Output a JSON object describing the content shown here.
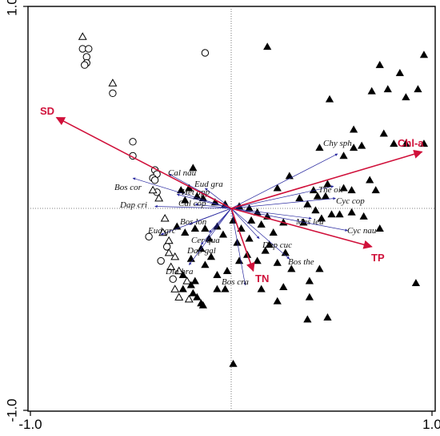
{
  "chart_data": {
    "type": "scatter",
    "title": "",
    "xlabel": "",
    "ylabel": "",
    "xlim": [
      -1.0,
      1.0
    ],
    "ylim": [
      -1.0,
      1.0
    ],
    "x_ticks": [
      -1.0,
      1.0
    ],
    "y_ticks": [
      -1.0,
      1.0
    ],
    "x_tick_labels": [
      "-1.0",
      "1.0"
    ],
    "y_tick_labels": [
      "-1.0",
      "1.0"
    ],
    "grid": false,
    "origin_crosshair": "dotted",
    "colors": {
      "env_arrow": "#d0103a",
      "species_arrow": "#2a2aa0",
      "points": "#000000"
    },
    "env_vectors": [
      {
        "name": "SD",
        "x": -0.87,
        "y": 0.45
      },
      {
        "name": "Chl-a",
        "x": 0.95,
        "y": 0.28
      },
      {
        "name": "TP",
        "x": 0.7,
        "y": -0.19
      },
      {
        "name": "TN",
        "x": 0.11,
        "y": -0.31
      }
    ],
    "species_vectors": [
      {
        "name": "Chy sph",
        "x": 0.53,
        "y": 0.27
      },
      {
        "name": "The oit",
        "x": 0.51,
        "y": 0.11
      },
      {
        "name": "Cyc cop",
        "x": 0.52,
        "y": 0.05
      },
      {
        "name": "Mes leu",
        "x": 0.4,
        "y": -0.05
      },
      {
        "name": "Cyc nau",
        "x": 0.58,
        "y": -0.11
      },
      {
        "name": "Bos the",
        "x": 0.29,
        "y": -0.25
      },
      {
        "name": "Dap cuc",
        "x": 0.14,
        "y": -0.15
      },
      {
        "name": "Bos cra",
        "x": 0.07,
        "y": -0.38
      },
      {
        "name": "Cal nau",
        "x": -0.31,
        "y": 0.17
      },
      {
        "name": "Eud gra",
        "x": -0.13,
        "y": 0.1
      },
      {
        "name": "Bos cor",
        "x": -0.49,
        "y": 0.15
      },
      {
        "name": "Het app",
        "x": -0.27,
        "y": 0.07
      },
      {
        "name": "Dap cri",
        "x": -0.38,
        "y": 0.01
      },
      {
        "name": "Cal cop",
        "x": -0.18,
        "y": 0.02
      },
      {
        "name": "Bos lon",
        "x": -0.21,
        "y": -0.08
      },
      {
        "name": "Eud grc",
        "x": -0.35,
        "y": -0.13
      },
      {
        "name": "Cer qua",
        "x": -0.11,
        "y": -0.12
      },
      {
        "name": "Dap gal",
        "x": -0.15,
        "y": -0.18
      },
      {
        "name": "Dia bra",
        "x": -0.21,
        "y": -0.28
      }
    ],
    "series": [
      {
        "marker": "open-circle",
        "points": [
          [
            -0.74,
            0.79
          ],
          [
            -0.71,
            0.79
          ],
          [
            -0.72,
            0.75
          ],
          [
            -0.72,
            0.72
          ],
          [
            -0.73,
            0.71
          ],
          [
            -0.59,
            0.57
          ],
          [
            -0.13,
            0.77
          ],
          [
            -0.49,
            0.33
          ],
          [
            -0.49,
            0.26
          ],
          [
            -0.38,
            0.19
          ],
          [
            -0.37,
            0.17
          ],
          [
            -0.39,
            0.15
          ],
          [
            -0.38,
            0.14
          ],
          [
            -0.37,
            0.08
          ],
          [
            -0.41,
            -0.14
          ],
          [
            -0.32,
            -0.19
          ],
          [
            -0.35,
            -0.26
          ],
          [
            -0.29,
            -0.35
          ]
        ]
      },
      {
        "marker": "open-triangle",
        "points": [
          [
            -0.74,
            0.85
          ],
          [
            -0.59,
            0.62
          ],
          [
            -0.39,
            0.09
          ],
          [
            -0.36,
            0.05
          ],
          [
            -0.33,
            -0.05
          ],
          [
            -0.34,
            -0.12
          ],
          [
            -0.31,
            -0.16
          ],
          [
            -0.31,
            -0.22
          ],
          [
            -0.28,
            -0.24
          ],
          [
            -0.3,
            -0.29
          ],
          [
            -0.26,
            -0.31
          ],
          [
            -0.22,
            -0.36
          ],
          [
            -0.28,
            -0.4
          ],
          [
            -0.21,
            -0.45
          ],
          [
            -0.26,
            -0.44
          ]
        ]
      },
      {
        "marker": "filled-triangle",
        "points": [
          [
            0.18,
            0.8
          ],
          [
            0.96,
            0.76
          ],
          [
            0.84,
            0.67
          ],
          [
            0.74,
            0.71
          ],
          [
            0.93,
            0.59
          ],
          [
            0.49,
            0.54
          ],
          [
            0.87,
            0.55
          ],
          [
            0.78,
            0.59
          ],
          [
            0.7,
            0.58
          ],
          [
            0.61,
            0.39
          ],
          [
            0.76,
            0.37
          ],
          [
            0.61,
            0.3
          ],
          [
            0.65,
            0.31
          ],
          [
            0.44,
            0.3
          ],
          [
            0.56,
            0.26
          ],
          [
            0.87,
            0.32
          ],
          [
            0.81,
            0.32
          ],
          [
            0.96,
            0.32
          ],
          [
            0.48,
            0.12
          ],
          [
            0.56,
            0.1
          ],
          [
            0.72,
            0.09
          ],
          [
            0.6,
            0.09
          ],
          [
            0.69,
            0.14
          ],
          [
            0.29,
            0.16
          ],
          [
            0.23,
            0.1
          ],
          [
            0.43,
            0.06
          ],
          [
            0.47,
            0.06
          ],
          [
            0.41,
            0.09
          ],
          [
            0.34,
            0.05
          ],
          [
            0.38,
            0.02
          ],
          [
            0.42,
            -0.01
          ],
          [
            0.6,
            -0.02
          ],
          [
            0.45,
            -0.05
          ],
          [
            0.54,
            -0.03
          ],
          [
            0.5,
            -0.03
          ],
          [
            0.66,
            -0.04
          ],
          [
            0.74,
            -0.1
          ],
          [
            -0.19,
            0.2
          ],
          [
            -0.21,
            0.1
          ],
          [
            -0.25,
            0.09
          ],
          [
            -0.23,
            0.04
          ],
          [
            -0.17,
            0.06
          ],
          [
            -0.14,
            0.05
          ],
          [
            -0.08,
            0.03
          ],
          [
            -0.03,
            0.02
          ],
          [
            0.04,
            0.01
          ],
          [
            0.09,
            0.0
          ],
          [
            0.13,
            -0.02
          ],
          [
            0.1,
            -0.06
          ],
          [
            0.18,
            -0.04
          ],
          [
            0.26,
            -0.07
          ],
          [
            0.36,
            -0.07
          ],
          [
            -0.27,
            -0.09
          ],
          [
            -0.23,
            -0.12
          ],
          [
            -0.18,
            -0.1
          ],
          [
            -0.13,
            -0.1
          ],
          [
            -0.07,
            -0.09
          ],
          [
            -0.04,
            -0.13
          ],
          [
            0.01,
            -0.06
          ],
          [
            0.05,
            -0.1
          ],
          [
            0.03,
            -0.17
          ],
          [
            0.09,
            -0.15
          ],
          [
            0.15,
            -0.08
          ],
          [
            0.21,
            -0.12
          ],
          [
            0.19,
            -0.18
          ],
          [
            0.27,
            -0.22
          ],
          [
            0.17,
            -0.21
          ],
          [
            0.23,
            -0.27
          ],
          [
            0.3,
            -0.3
          ],
          [
            0.13,
            -0.26
          ],
          [
            0.08,
            -0.23
          ],
          [
            0.04,
            -0.26
          ],
          [
            -0.11,
            -0.15
          ],
          [
            -0.15,
            -0.2
          ],
          [
            -0.1,
            -0.24
          ],
          [
            -0.13,
            -0.28
          ],
          [
            -0.07,
            -0.33
          ],
          [
            -0.2,
            -0.25
          ],
          [
            -0.24,
            -0.33
          ],
          [
            -0.18,
            -0.36
          ],
          [
            -0.2,
            -0.38
          ],
          [
            -0.19,
            -0.42
          ],
          [
            -0.24,
            -0.4
          ],
          [
            -0.17,
            -0.44
          ],
          [
            -0.15,
            -0.47
          ],
          [
            -0.14,
            -0.48
          ],
          [
            -0.07,
            -0.4
          ],
          [
            -0.02,
            -0.31
          ],
          [
            -0.03,
            -0.4
          ],
          [
            0.15,
            -0.4
          ],
          [
            0.26,
            -0.39
          ],
          [
            0.23,
            -0.46
          ],
          [
            0.39,
            -0.36
          ],
          [
            0.44,
            -0.3
          ],
          [
            0.39,
            -0.44
          ],
          [
            0.38,
            -0.55
          ],
          [
            0.48,
            -0.54
          ],
          [
            0.92,
            -0.37
          ],
          [
            0.01,
            -0.77
          ]
        ]
      }
    ]
  }
}
